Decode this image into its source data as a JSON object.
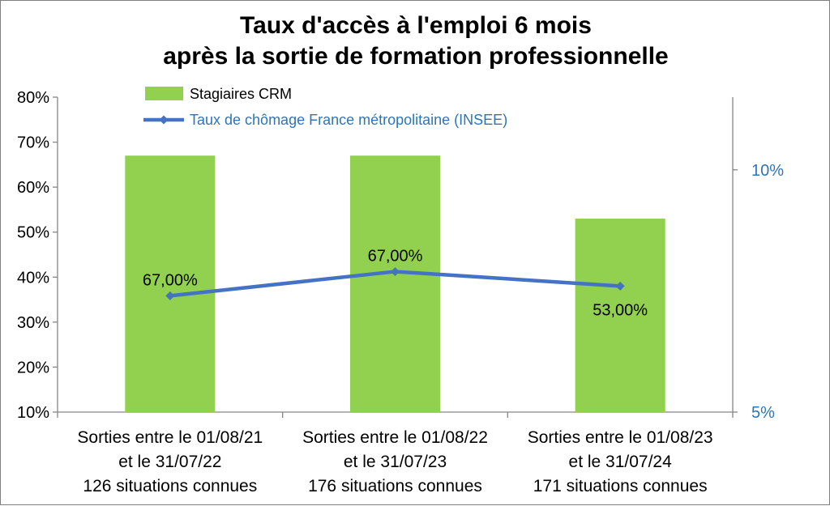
{
  "chart_data": {
    "type": "bar",
    "title_lines": [
      "Taux d'accès à l'emploi 6 mois",
      "après la sortie de formation professionnelle"
    ],
    "categories": [
      [
        "Sorties entre le 01/08/21",
        "et le 31/07/22",
        "126 situations connues"
      ],
      [
        "Sorties entre le 01/08/22",
        "et le 31/07/23",
        "176 situations connues"
      ],
      [
        "Sorties entre le 01/08/23",
        "et le 31/07/24",
        "171 situations connues"
      ]
    ],
    "series": [
      {
        "name": "Stagiaires CRM",
        "type": "bar",
        "axis": "left",
        "values": [
          67,
          67,
          53
        ],
        "labels": [
          "67,00%",
          "67,00%",
          "53,00%"
        ],
        "color": "#92d050"
      },
      {
        "name": "Taux de chômage France métropolitaine (INSEE)",
        "type": "line",
        "axis": "right",
        "values": [
          7.4,
          7.9,
          7.6
        ],
        "color": "#4472c4"
      }
    ],
    "y_left": {
      "min": 10,
      "max": 80,
      "step": 10,
      "tick_labels": [
        "10%",
        "20%",
        "30%",
        "40%",
        "50%",
        "60%",
        "70%",
        "80%"
      ]
    },
    "y_right": {
      "min": 5,
      "max": 11.5,
      "ticks": [
        5,
        10
      ],
      "tick_labels": [
        "5%",
        "10%"
      ],
      "color": "#2e75b6"
    },
    "grid": false,
    "legend_position": "top-left"
  }
}
